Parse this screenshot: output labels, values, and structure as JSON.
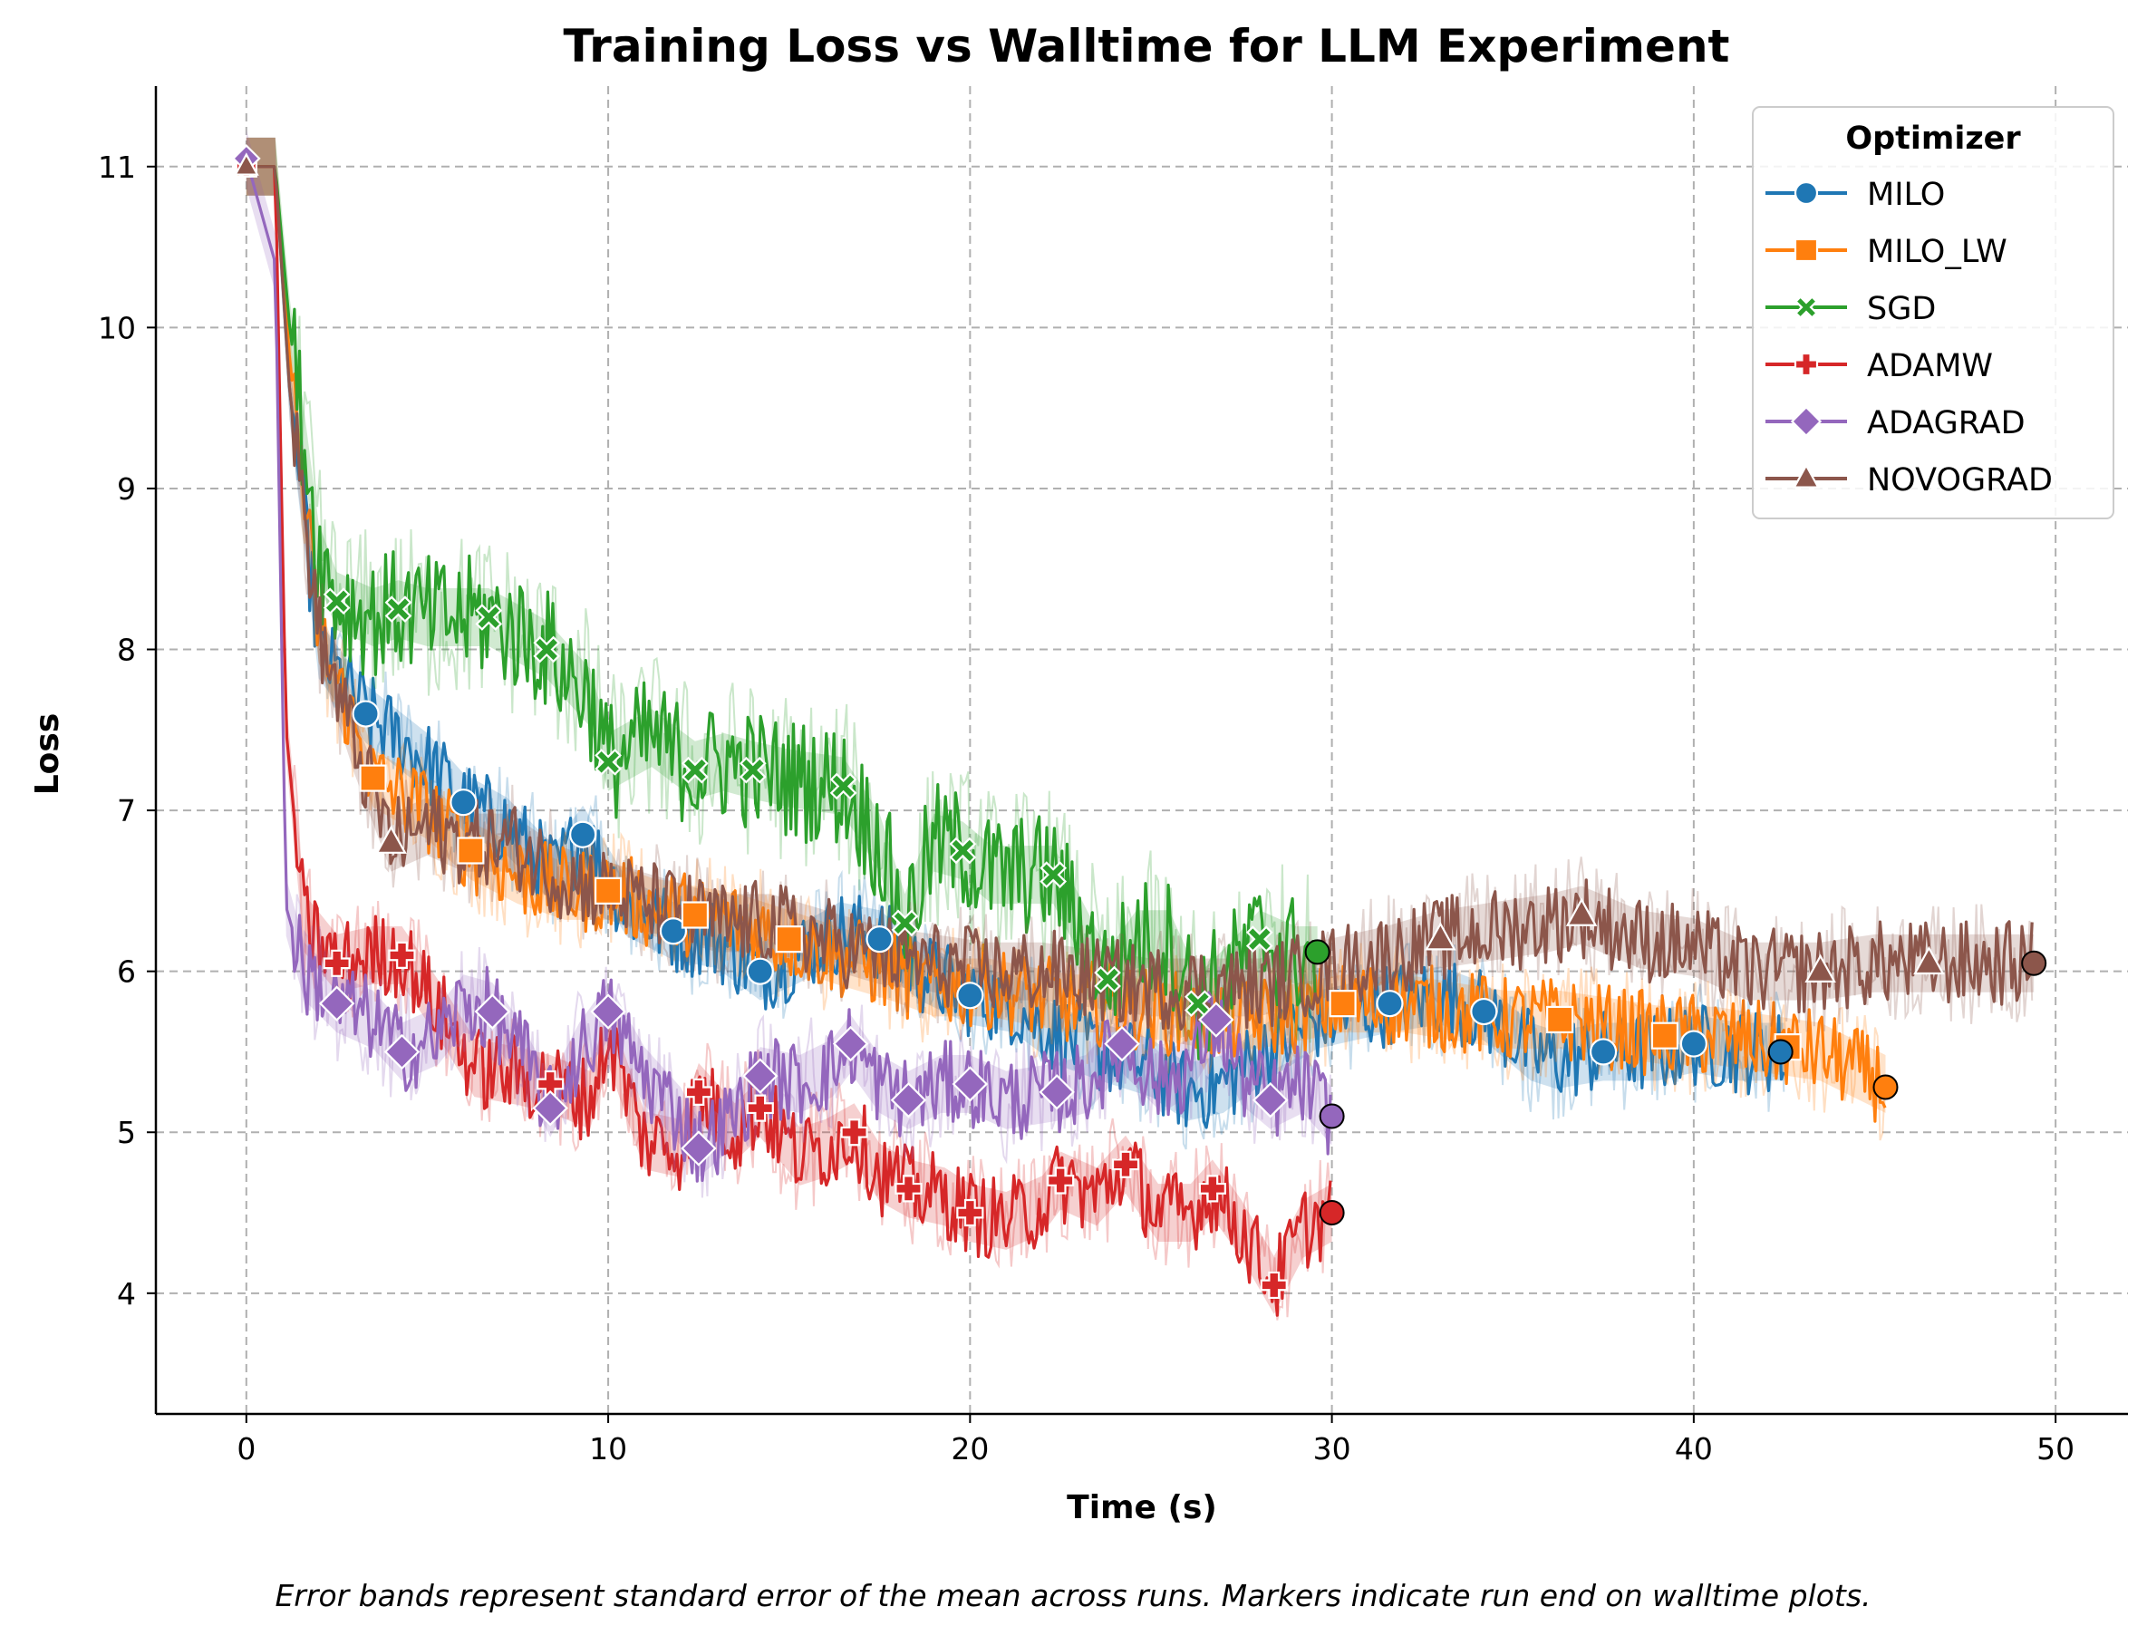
{
  "chart_data": {
    "type": "line",
    "title": "Training Loss vs Walltime for LLM Experiment",
    "xlabel": "Time (s)",
    "ylabel": "Loss",
    "xlim": [
      -2.5,
      52
    ],
    "ylim": [
      3.25,
      11.5
    ],
    "xticks": [
      0,
      10,
      20,
      30,
      40,
      50
    ],
    "yticks": [
      4,
      5,
      6,
      7,
      8,
      9,
      10,
      11
    ],
    "grid": true,
    "legend_title": "Optimizer",
    "legend_position": "top-right",
    "caption": "Error bands represent standard error of the mean across runs. Markers indicate run end on walltime plots.",
    "series": [
      {
        "name": "MILO",
        "color": "#1f77b4",
        "marker": "circle",
        "points": [
          [
            0,
            11.0
          ],
          [
            0.8,
            11.0
          ],
          [
            1.2,
            9.6
          ],
          [
            2.0,
            8.0
          ],
          [
            3.3,
            7.6
          ],
          [
            5.0,
            7.3
          ],
          [
            6.0,
            7.05
          ],
          [
            7.2,
            6.9
          ],
          [
            8.5,
            6.6
          ],
          [
            9.3,
            6.85
          ],
          [
            10.5,
            6.4
          ],
          [
            11.8,
            6.25
          ],
          [
            13.0,
            6.2
          ],
          [
            14.2,
            6.0
          ],
          [
            15.2,
            6.1
          ],
          [
            16.4,
            6.25
          ],
          [
            17.5,
            6.2
          ],
          [
            18.6,
            6.0
          ],
          [
            20.0,
            5.85
          ],
          [
            21.2,
            5.8
          ],
          [
            22.4,
            5.6
          ],
          [
            23.6,
            5.5
          ],
          [
            25.0,
            5.4
          ],
          [
            26.0,
            5.25
          ],
          [
            27.0,
            5.3
          ],
          [
            28.2,
            5.5
          ],
          [
            29.6,
            5.7
          ],
          [
            31.6,
            5.8
          ],
          [
            33.0,
            5.85
          ],
          [
            34.2,
            5.75
          ],
          [
            35.5,
            5.5
          ],
          [
            36.2,
            5.45
          ],
          [
            37.5,
            5.5
          ],
          [
            39.0,
            5.5
          ],
          [
            40.0,
            5.55
          ],
          [
            41.3,
            5.5
          ],
          [
            42.5,
            5.5
          ]
        ],
        "markers_x": [
          3.3,
          6.0,
          9.3,
          11.8,
          14.2,
          17.5,
          20.0,
          31.6,
          34.2,
          37.5,
          40.0
        ],
        "end": [
          42.4,
          5.5
        ]
      },
      {
        "name": "MILO_LW",
        "color": "#ff7f0e",
        "marker": "square",
        "points": [
          [
            0,
            11.0
          ],
          [
            0.8,
            11.0
          ],
          [
            1.2,
            9.8
          ],
          [
            2.0,
            8.1
          ],
          [
            3.5,
            7.2
          ],
          [
            5.0,
            7.0
          ],
          [
            6.2,
            6.75
          ],
          [
            7.5,
            6.6
          ],
          [
            8.8,
            6.5
          ],
          [
            10.0,
            6.5
          ],
          [
            11.2,
            6.4
          ],
          [
            12.4,
            6.35
          ],
          [
            13.6,
            6.3
          ],
          [
            15.0,
            6.2
          ],
          [
            16.3,
            6.1
          ],
          [
            17.8,
            6.0
          ],
          [
            19.0,
            5.9
          ],
          [
            20.5,
            5.9
          ],
          [
            21.6,
            5.85
          ],
          [
            22.8,
            5.8
          ],
          [
            24.0,
            5.8
          ],
          [
            25.3,
            5.75
          ],
          [
            26.6,
            5.7
          ],
          [
            28.0,
            5.7
          ],
          [
            30.3,
            5.8
          ],
          [
            32.0,
            5.8
          ],
          [
            33.4,
            5.75
          ],
          [
            34.8,
            5.7
          ],
          [
            36.3,
            5.7
          ],
          [
            37.8,
            5.65
          ],
          [
            39.2,
            5.6
          ],
          [
            40.6,
            5.6
          ],
          [
            42.0,
            5.55
          ],
          [
            43.5,
            5.5
          ],
          [
            45.3,
            5.3
          ]
        ],
        "markers_x": [
          3.5,
          6.2,
          10.0,
          12.4,
          15.0,
          30.3,
          36.3,
          39.2,
          42.6
        ],
        "end": [
          45.3,
          5.28
        ]
      },
      {
        "name": "SGD",
        "color": "#2ca02c",
        "marker": "x",
        "points": [
          [
            0,
            11.0
          ],
          [
            0.8,
            11.0
          ],
          [
            1.2,
            10.0
          ],
          [
            2.0,
            8.6
          ],
          [
            2.5,
            8.3
          ],
          [
            3.5,
            8.2
          ],
          [
            4.2,
            8.25
          ],
          [
            5.0,
            8.2
          ],
          [
            6.0,
            8.2
          ],
          [
            6.7,
            8.2
          ],
          [
            7.5,
            8.1
          ],
          [
            8.3,
            8.0
          ],
          [
            9.5,
            7.7
          ],
          [
            10.0,
            7.3
          ],
          [
            11.2,
            7.45
          ],
          [
            12.4,
            7.25
          ],
          [
            13.2,
            7.3
          ],
          [
            14.0,
            7.25
          ],
          [
            15.0,
            7.2
          ],
          [
            16.5,
            7.15
          ],
          [
            17.5,
            6.8
          ],
          [
            18.2,
            6.3
          ],
          [
            19.0,
            6.8
          ],
          [
            19.8,
            6.75
          ],
          [
            20.6,
            6.6
          ],
          [
            21.8,
            6.6
          ],
          [
            22.3,
            6.6
          ],
          [
            23.0,
            6.3
          ],
          [
            23.8,
            5.95
          ],
          [
            24.6,
            6.2
          ],
          [
            25.5,
            6.2
          ],
          [
            26.3,
            5.8
          ],
          [
            27.2,
            6.0
          ],
          [
            28.0,
            6.2
          ],
          [
            29.0,
            6.1
          ],
          [
            29.6,
            6.1
          ]
        ],
        "markers_x": [
          2.5,
          4.2,
          6.7,
          8.3,
          10.0,
          12.4,
          14.0,
          16.5,
          18.2,
          19.8,
          22.3,
          23.8,
          26.3,
          28.0
        ],
        "end": [
          29.6,
          6.12
        ]
      },
      {
        "name": "ADAMW",
        "color": "#d62728",
        "marker": "plus",
        "points": [
          [
            0,
            11.0
          ],
          [
            0.8,
            11.0
          ],
          [
            1.1,
            7.5
          ],
          [
            1.6,
            6.3
          ],
          [
            2.5,
            6.05
          ],
          [
            3.5,
            6.1
          ],
          [
            4.3,
            6.1
          ],
          [
            5.5,
            5.7
          ],
          [
            6.3,
            5.4
          ],
          [
            7.5,
            5.35
          ],
          [
            8.4,
            5.3
          ],
          [
            9.5,
            5.2
          ],
          [
            10.0,
            5.6
          ],
          [
            11.0,
            4.95
          ],
          [
            12.0,
            4.9
          ],
          [
            12.5,
            5.25
          ],
          [
            13.5,
            5.0
          ],
          [
            14.2,
            5.15
          ],
          [
            15.3,
            4.85
          ],
          [
            16.0,
            4.9
          ],
          [
            16.8,
            5.0
          ],
          [
            17.5,
            4.75
          ],
          [
            18.3,
            4.65
          ],
          [
            19.3,
            4.6
          ],
          [
            20.0,
            4.5
          ],
          [
            21.0,
            4.45
          ],
          [
            22.0,
            4.55
          ],
          [
            22.5,
            4.7
          ],
          [
            23.5,
            4.6
          ],
          [
            24.3,
            4.8
          ],
          [
            25.2,
            4.5
          ],
          [
            26.1,
            4.5
          ],
          [
            26.7,
            4.65
          ],
          [
            27.5,
            4.4
          ],
          [
            28.4,
            4.05
          ],
          [
            29.2,
            4.4
          ],
          [
            30.0,
            4.5
          ]
        ],
        "markers_x": [
          2.5,
          4.3,
          8.4,
          12.5,
          14.2,
          16.8,
          18.3,
          20.0,
          22.5,
          24.3,
          26.7,
          28.4
        ],
        "end": [
          30.0,
          4.5
        ]
      },
      {
        "name": "ADAGRAD",
        "color": "#9467bd",
        "marker": "diamond",
        "points": [
          [
            0,
            11.05
          ],
          [
            0.8,
            10.4
          ],
          [
            1.1,
            6.4
          ],
          [
            1.6,
            6.0
          ],
          [
            2.5,
            5.8
          ],
          [
            3.5,
            5.7
          ],
          [
            4.3,
            5.5
          ],
          [
            5.3,
            5.6
          ],
          [
            6.0,
            5.8
          ],
          [
            6.8,
            5.75
          ],
          [
            7.6,
            5.5
          ],
          [
            8.4,
            5.15
          ],
          [
            9.2,
            5.5
          ],
          [
            10.0,
            5.75
          ],
          [
            11.0,
            5.35
          ],
          [
            12.0,
            5.1
          ],
          [
            12.5,
            4.9
          ],
          [
            13.5,
            5.1
          ],
          [
            14.2,
            5.35
          ],
          [
            15.3,
            5.3
          ],
          [
            16.2,
            5.4
          ],
          [
            16.7,
            5.55
          ],
          [
            17.5,
            5.3
          ],
          [
            18.3,
            5.2
          ],
          [
            19.2,
            5.3
          ],
          [
            20.0,
            5.3
          ],
          [
            21.0,
            5.2
          ],
          [
            22.4,
            5.25
          ],
          [
            23.2,
            5.3
          ],
          [
            24.2,
            5.55
          ],
          [
            25.3,
            5.3
          ],
          [
            26.0,
            5.4
          ],
          [
            26.8,
            5.7
          ],
          [
            27.5,
            5.35
          ],
          [
            28.3,
            5.2
          ],
          [
            29.2,
            5.3
          ],
          [
            30.0,
            5.1
          ]
        ],
        "markers_x": [
          2.5,
          4.3,
          6.8,
          8.4,
          10.0,
          12.5,
          14.2,
          16.7,
          18.3,
          20.0,
          22.4,
          24.2,
          26.8,
          28.3
        ],
        "end": [
          30.0,
          5.1
        ]
      },
      {
        "name": "NOVOGRAD",
        "color": "#8c564b",
        "marker": "triangle",
        "points": [
          [
            0,
            11.0
          ],
          [
            0.8,
            11.0
          ],
          [
            1.2,
            9.6
          ],
          [
            2.0,
            8.1
          ],
          [
            3.0,
            7.4
          ],
          [
            4.0,
            6.8
          ],
          [
            5.0,
            6.9
          ],
          [
            6.0,
            6.8
          ],
          [
            7.3,
            6.8
          ],
          [
            8.6,
            6.6
          ],
          [
            10.0,
            6.5
          ],
          [
            11.5,
            6.4
          ],
          [
            13.0,
            6.3
          ],
          [
            14.5,
            6.3
          ],
          [
            16.0,
            6.2
          ],
          [
            17.5,
            6.1
          ],
          [
            19.0,
            6.05
          ],
          [
            20.5,
            6.0
          ],
          [
            22.0,
            6.0
          ],
          [
            23.5,
            5.95
          ],
          [
            25.0,
            5.9
          ],
          [
            26.5,
            5.9
          ],
          [
            28.0,
            5.9
          ],
          [
            29.5,
            6.0
          ],
          [
            31.5,
            6.1
          ],
          [
            33.0,
            6.2
          ],
          [
            34.5,
            6.25
          ],
          [
            36.0,
            6.3
          ],
          [
            36.9,
            6.35
          ],
          [
            38.5,
            6.2
          ],
          [
            40.0,
            6.15
          ],
          [
            41.5,
            6.0
          ],
          [
            43.5,
            6.0
          ],
          [
            45.0,
            6.05
          ],
          [
            46.5,
            6.05
          ],
          [
            48.0,
            6.05
          ],
          [
            49.4,
            6.05
          ]
        ],
        "markers_x": [
          4.0,
          33.0,
          36.9,
          43.5,
          46.5
        ],
        "end": [
          49.4,
          6.05
        ]
      }
    ]
  }
}
